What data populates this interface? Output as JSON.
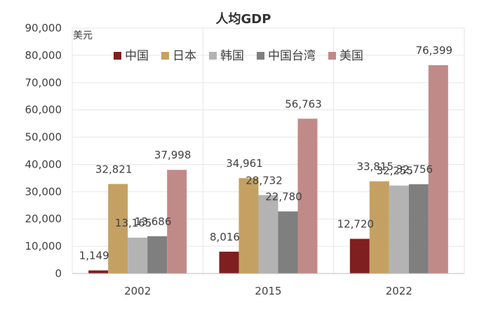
{
  "chart_data": {
    "type": "bar",
    "title": "人均GDP",
    "unit_label": "美元",
    "categories": [
      "2002",
      "2015",
      "2022"
    ],
    "ylim": [
      0,
      90000
    ],
    "yticks": [
      0,
      10000,
      20000,
      30000,
      40000,
      50000,
      60000,
      70000,
      80000,
      90000
    ],
    "ytick_labels": [
      "0",
      "10,000",
      "20,000",
      "30,000",
      "40,000",
      "50,000",
      "60,000",
      "70,000",
      "80,000",
      "90,000"
    ],
    "grid": true,
    "legend_position": "top",
    "series": [
      {
        "name": "中国",
        "color": "#7f1f1f",
        "values": [
          1149,
          8016,
          12720
        ],
        "labels": [
          "1,149",
          "8,016",
          "12,720"
        ]
      },
      {
        "name": "日本",
        "color": "#c4a163",
        "values": [
          32821,
          34961,
          33815
        ],
        "labels": [
          "32,821",
          "34,961",
          "33,815"
        ]
      },
      {
        "name": "韩国",
        "color": "#b3b3b3",
        "values": [
          13165,
          28732,
          32255
        ],
        "labels": [
          "13,165",
          "28,732",
          "32,255"
        ]
      },
      {
        "name": "中国台湾",
        "color": "#7f7f7f",
        "values": [
          13686,
          22780,
          32756
        ],
        "labels": [
          "13,686",
          "22,780",
          "32,756"
        ]
      },
      {
        "name": "美国",
        "color": "#c08a88",
        "values": [
          37998,
          56763,
          76399
        ],
        "labels": [
          "37,998",
          "56,763",
          "76,399"
        ]
      }
    ]
  }
}
